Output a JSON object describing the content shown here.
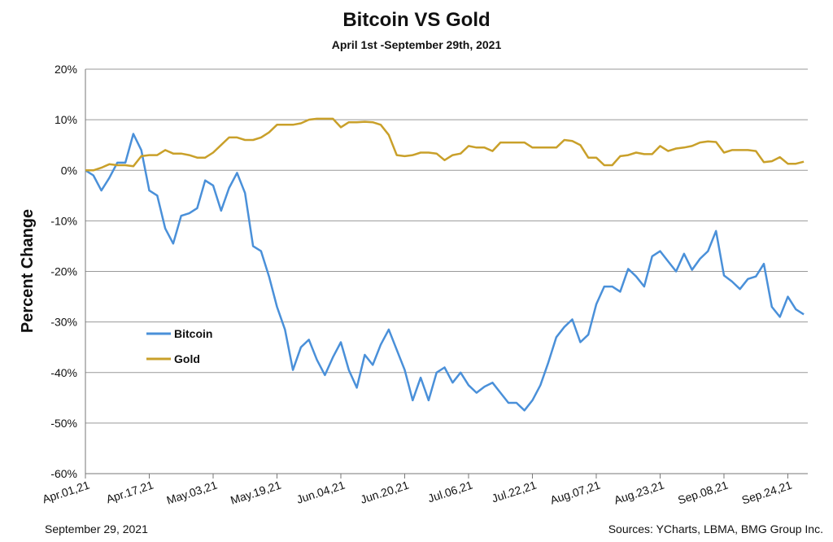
{
  "chart_data": {
    "type": "line",
    "title": "Bitcoin VS Gold",
    "subtitle": "April 1st -September 29th, 2021",
    "y_label": "Percent Change",
    "date_note": "September 29, 2021",
    "source": "Sources: YCharts, LBMA, BMG Group Inc.",
    "xlim": [
      "2021-04-01",
      "2021-09-29"
    ],
    "xticks": [
      {
        "value": "2021-04-01",
        "label": "Apr.01,21"
      },
      {
        "value": "2021-04-17",
        "label": "Apr.17,21"
      },
      {
        "value": "2021-05-03",
        "label": "May.03,21"
      },
      {
        "value": "2021-05-19",
        "label": "May.19,21"
      },
      {
        "value": "2021-06-04",
        "label": "Jun.04,21"
      },
      {
        "value": "2021-06-20",
        "label": "Jun.20,21"
      },
      {
        "value": "2021-07-06",
        "label": "Jul.06,21"
      },
      {
        "value": "2021-07-22",
        "label": "Jul.22,21"
      },
      {
        "value": "2021-08-07",
        "label": "Aug.07,21"
      },
      {
        "value": "2021-08-23",
        "label": "Aug.23,21"
      },
      {
        "value": "2021-09-08",
        "label": "Sep.08,21"
      },
      {
        "value": "2021-09-24",
        "label": "Sep.24,21"
      }
    ],
    "ylim": [
      -60,
      20
    ],
    "yticks": [
      {
        "value": 20,
        "label": "20%"
      },
      {
        "value": 10,
        "label": "10%"
      },
      {
        "value": 0,
        "label": "0%"
      },
      {
        "value": -10,
        "label": "-10%"
      },
      {
        "value": -20,
        "label": "-20%"
      },
      {
        "value": -30,
        "label": "-30%"
      },
      {
        "value": -40,
        "label": "-40%"
      },
      {
        "value": -50,
        "label": "-50%"
      },
      {
        "value": -60,
        "label": "-60%"
      }
    ],
    "grid": true,
    "x": [
      "2021-04-01",
      "2021-04-03",
      "2021-04-05",
      "2021-04-07",
      "2021-04-09",
      "2021-04-11",
      "2021-04-13",
      "2021-04-15",
      "2021-04-17",
      "2021-04-19",
      "2021-04-21",
      "2021-04-23",
      "2021-04-25",
      "2021-04-27",
      "2021-04-29",
      "2021-05-01",
      "2021-05-03",
      "2021-05-05",
      "2021-05-07",
      "2021-05-09",
      "2021-05-11",
      "2021-05-13",
      "2021-05-15",
      "2021-05-17",
      "2021-05-19",
      "2021-05-21",
      "2021-05-23",
      "2021-05-25",
      "2021-05-27",
      "2021-05-29",
      "2021-05-31",
      "2021-06-02",
      "2021-06-04",
      "2021-06-06",
      "2021-06-08",
      "2021-06-10",
      "2021-06-12",
      "2021-06-14",
      "2021-06-16",
      "2021-06-18",
      "2021-06-20",
      "2021-06-22",
      "2021-06-24",
      "2021-06-26",
      "2021-06-28",
      "2021-06-30",
      "2021-07-02",
      "2021-07-04",
      "2021-07-06",
      "2021-07-08",
      "2021-07-10",
      "2021-07-12",
      "2021-07-14",
      "2021-07-16",
      "2021-07-18",
      "2021-07-20",
      "2021-07-22",
      "2021-07-24",
      "2021-07-26",
      "2021-07-28",
      "2021-07-30",
      "2021-08-01",
      "2021-08-03",
      "2021-08-05",
      "2021-08-07",
      "2021-08-09",
      "2021-08-11",
      "2021-08-13",
      "2021-08-15",
      "2021-08-17",
      "2021-08-19",
      "2021-08-21",
      "2021-08-23",
      "2021-08-25",
      "2021-08-27",
      "2021-08-29",
      "2021-08-31",
      "2021-09-02",
      "2021-09-04",
      "2021-09-06",
      "2021-09-08",
      "2021-09-10",
      "2021-09-12",
      "2021-09-14",
      "2021-09-16",
      "2021-09-18",
      "2021-09-20",
      "2021-09-22",
      "2021-09-24",
      "2021-09-26",
      "2021-09-28"
    ],
    "series": [
      {
        "name": "Bitcoin",
        "color": "#4a90d9",
        "values": [
          0,
          -1,
          -4,
          -1.5,
          1.5,
          1.5,
          7.2,
          4,
          -4,
          -5,
          -11.5,
          -14.5,
          -9,
          -8.5,
          -7.5,
          -2,
          -3,
          -8,
          -3.5,
          -0.5,
          -4.5,
          -15,
          -16,
          -21,
          -27,
          -31.5,
          -39.5,
          -35,
          -33.5,
          -37.5,
          -40.5,
          -37,
          -34,
          -39.5,
          -43,
          -36.5,
          -38.5,
          -34.5,
          -31.5,
          -35.5,
          -39.5,
          -45.5,
          -41,
          -45.5,
          -40,
          -39,
          -42,
          -40,
          -42.5,
          -44,
          -42.8,
          -42,
          -44,
          -46,
          -46,
          -47.5,
          -45.5,
          -42.5,
          -38,
          -33,
          -31,
          -29.5,
          -34,
          -32.5,
          -26.5,
          -23,
          -23,
          -24,
          -19.5,
          -21,
          -23,
          -17,
          -16,
          -18,
          -20,
          -16.5,
          -19.7,
          -17.5,
          -16,
          -12,
          -20.8,
          -22,
          -23.5,
          -21.5,
          -21,
          -18.5,
          -27,
          -29,
          -25,
          -27.5,
          -28.5
        ]
      },
      {
        "name": "Gold",
        "color": "#c9a02a",
        "values": [
          0,
          0,
          0.5,
          1.2,
          1,
          1,
          0.8,
          2.8,
          3,
          3,
          4,
          3.3,
          3.3,
          3,
          2.5,
          2.5,
          3.5,
          5,
          6.5,
          6.5,
          6,
          6,
          6.5,
          7.5,
          9,
          9,
          9,
          9.3,
          10,
          10.2,
          10.2,
          10.2,
          8.5,
          9.5,
          9.5,
          9.6,
          9.5,
          9,
          7,
          3,
          2.8,
          3,
          3.5,
          3.5,
          3.3,
          2,
          3,
          3.3,
          4.8,
          4.5,
          4.5,
          3.8,
          5.5,
          5.5,
          5.5,
          5.5,
          4.5,
          4.5,
          4.5,
          4.5,
          6,
          5.8,
          5,
          2.5,
          2.5,
          1,
          1,
          2.8,
          3,
          3.5,
          3.2,
          3.2,
          4.8,
          3.8,
          4.3,
          4.5,
          4.8,
          5.5,
          5.7,
          5.6,
          3.5,
          4,
          4,
          4,
          3.8,
          1.6,
          1.8,
          2.6,
          1.3,
          1.3,
          1.7
        ]
      }
    ]
  }
}
